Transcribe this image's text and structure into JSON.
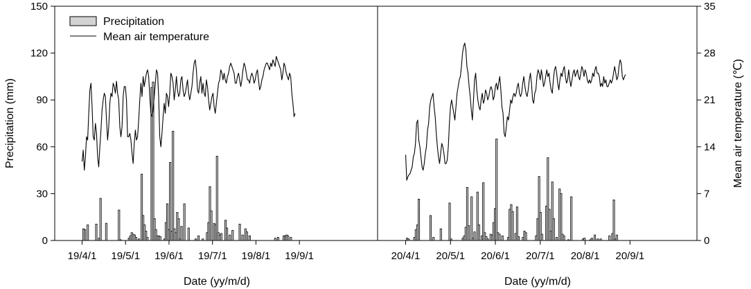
{
  "chart_data": {
    "type": "bar+line",
    "legend": {
      "placement": "top-left",
      "entries": [
        {
          "label": "Precipitation",
          "kind": "bar",
          "fill": "#d3d3d3",
          "stroke": "#000000"
        },
        {
          "label": "Mean air temperature",
          "kind": "line",
          "stroke": "#000000"
        }
      ]
    },
    "y_left": {
      "label": "Precipitation (mm)",
      "range": [
        0,
        150
      ],
      "ticks": [
        0,
        30,
        60,
        90,
        120,
        150
      ],
      "tick_labels": [
        "0",
        "30",
        "60",
        "90",
        "120",
        "150"
      ]
    },
    "y_right": {
      "label": "Mean air temperature (℃)",
      "range": [
        0,
        35
      ],
      "ticks": [
        0,
        7,
        14,
        21,
        28,
        35
      ],
      "tick_labels": [
        "0",
        "7",
        "14",
        "21",
        "28",
        "35"
      ]
    },
    "panels": [
      {
        "xlabel": "Date (yy/m/d)",
        "x_ticks": [
          "19/4/1",
          "19/5/1",
          "19/6/1",
          "19/7/1",
          "19/8/1",
          "19/9/1"
        ],
        "start_date": "2019-04-01",
        "precipitation": [
          [
            "2019-04-02",
            7.5
          ],
          [
            "2019-04-03",
            7.0
          ],
          [
            "2019-04-05",
            10.0
          ],
          [
            "2019-04-11",
            10.5
          ],
          [
            "2019-04-13",
            1.5
          ],
          [
            "2019-04-14",
            27.0
          ],
          [
            "2019-04-18",
            11.0
          ],
          [
            "2019-04-27",
            19.5
          ],
          [
            "2019-04-28",
            0.5
          ],
          [
            "2019-05-04",
            1.5
          ],
          [
            "2019-05-05",
            3.0
          ],
          [
            "2019-05-06",
            5.0
          ],
          [
            "2019-05-07",
            4.0
          ],
          [
            "2019-05-08",
            3.5
          ],
          [
            "2019-05-09",
            2.0
          ],
          [
            "2019-05-11",
            1.0
          ],
          [
            "2019-05-13",
            42.5
          ],
          [
            "2019-05-14",
            16.0
          ],
          [
            "2019-05-15",
            10.0
          ],
          [
            "2019-05-16",
            6.0
          ],
          [
            "2019-05-17",
            2.0
          ],
          [
            "2019-05-20",
            98.0
          ],
          [
            "2019-05-21",
            101.5
          ],
          [
            "2019-05-22",
            14.0
          ],
          [
            "2019-05-23",
            7.0
          ],
          [
            "2019-05-24",
            3.0
          ],
          [
            "2019-05-25",
            3.0
          ],
          [
            "2019-05-26",
            2.5
          ],
          [
            "2019-05-29",
            1.0
          ],
          [
            "2019-05-30",
            11.5
          ],
          [
            "2019-05-31",
            23.5
          ],
          [
            "2019-06-01",
            7.0
          ],
          [
            "2019-06-02",
            50.0
          ],
          [
            "2019-06-03",
            6.0
          ],
          [
            "2019-06-04",
            70.0
          ],
          [
            "2019-06-05",
            7.5
          ],
          [
            "2019-06-06",
            5.0
          ],
          [
            "2019-06-07",
            18.0
          ],
          [
            "2019-06-08",
            14.0
          ],
          [
            "2019-06-09",
            1.0
          ],
          [
            "2019-06-10",
            9.0
          ],
          [
            "2019-06-12",
            23.5
          ],
          [
            "2019-06-15",
            8.0
          ],
          [
            "2019-06-20",
            1.0
          ],
          [
            "2019-06-22",
            3.0
          ],
          [
            "2019-06-25",
            1.0
          ],
          [
            "2019-06-28",
            5.0
          ],
          [
            "2019-06-29",
            11.5
          ],
          [
            "2019-06-30",
            34.5
          ],
          [
            "2019-07-01",
            19.0
          ],
          [
            "2019-07-03",
            11.0
          ],
          [
            "2019-07-04",
            10.0
          ],
          [
            "2019-07-05",
            54.0
          ],
          [
            "2019-07-06",
            5.0
          ],
          [
            "2019-07-07",
            3.5
          ],
          [
            "2019-07-08",
            4.5
          ],
          [
            "2019-07-11",
            13.0
          ],
          [
            "2019-07-12",
            8.0
          ],
          [
            "2019-07-14",
            3.5
          ],
          [
            "2019-07-16",
            6.5
          ],
          [
            "2019-07-21",
            10.5
          ],
          [
            "2019-07-23",
            3.5
          ],
          [
            "2019-07-25",
            7.5
          ],
          [
            "2019-07-26",
            5.5
          ],
          [
            "2019-07-28",
            3.0
          ],
          [
            "2019-08-15",
            1.5
          ],
          [
            "2019-08-17",
            2.0
          ],
          [
            "2019-08-21",
            3.0
          ],
          [
            "2019-08-22",
            3.0
          ],
          [
            "2019-08-23",
            3.5
          ],
          [
            "2019-08-24",
            3.0
          ],
          [
            "2019-08-26",
            2.0
          ]
        ],
        "temperature": [
          11.8,
          13.5,
          10.5,
          12.5,
          15.5,
          15.0,
          19.0,
          22.5,
          23.5,
          20.0,
          15.5,
          15.0,
          17.5,
          16.0,
          12.5,
          11.0,
          14.0,
          16.5,
          19.5,
          21.0,
          22.0,
          21.5,
          18.0,
          15.0,
          17.0,
          20.5,
          22.0,
          21.5,
          23.5,
          23.0,
          22.0,
          23.8,
          22.0,
          21.0,
          17.0,
          15.5,
          17.0,
          21.5,
          23.0,
          23.0,
          21.0,
          15.5,
          15.5,
          16.0,
          15.0,
          13.0,
          11.5,
          14.5,
          16.5,
          15.0,
          15.5,
          18.0,
          21.0,
          23.5,
          21.5,
          24.5,
          23.0,
          24.0,
          25.0,
          25.5,
          24.5,
          21.5,
          19.0,
          18.5,
          19.5,
          21.5,
          23.5,
          25.5,
          25.0,
          21.5,
          15.5,
          14.0,
          16.0,
          18.5,
          20.5,
          19.0,
          22.0,
          21.5,
          20.0,
          22.0,
          25.0,
          24.5,
          23.5,
          21.0,
          22.5,
          24.5,
          22.5,
          21.5,
          22.0,
          24.0,
          24.5,
          22.5,
          21.5,
          22.0,
          23.0,
          24.0,
          22.0,
          21.0,
          22.0,
          23.0,
          25.0,
          26.5,
          27.0,
          25.5,
          22.5,
          22.0,
          23.5,
          24.5,
          22.0,
          23.5,
          22.0,
          21.5,
          24.0,
          23.0,
          21.0,
          19.5,
          20.5,
          21.5,
          22.0,
          20.0,
          19.0,
          20.5,
          22.0,
          23.5,
          24.0,
          25.5,
          25.0,
          24.0,
          25.0,
          24.0,
          23.5,
          24.5,
          25.0,
          26.0,
          26.5,
          26.0,
          25.5,
          25.0,
          23.5,
          23.5,
          24.5,
          25.0,
          24.0,
          23.0,
          24.0,
          25.5,
          26.5,
          26.0,
          25.0,
          24.0,
          24.0,
          23.5,
          24.5,
          25.0,
          24.5,
          23.5,
          24.0,
          25.0,
          25.5,
          24.0,
          22.5,
          23.0,
          24.0,
          24.5,
          25.5,
          26.0,
          26.5,
          26.5,
          26.0,
          25.5,
          26.5,
          26.0,
          27.0,
          26.5,
          26.0,
          27.5,
          27.0,
          26.5,
          26.0,
          25.5,
          24.0,
          25.0,
          26.5,
          26.0,
          25.0,
          24.5,
          24.0,
          25.0,
          24.5,
          22.0,
          20.5,
          18.5,
          19.0
        ]
      },
      {
        "xlabel": "Date (yy/m/d)",
        "x_ticks": [
          "20/4/1",
          "20/5/1",
          "20/6/1",
          "20/7/1",
          "20/8/1",
          "20/9/1"
        ],
        "start_date": "2020-04-01",
        "precipitation": [
          [
            "2020-04-02",
            1.5
          ],
          [
            "2020-04-03",
            1.0
          ],
          [
            "2020-04-07",
            2.0
          ],
          [
            "2020-04-08",
            7.0
          ],
          [
            "2020-04-09",
            10.0
          ],
          [
            "2020-04-10",
            26.5
          ],
          [
            "2020-04-18",
            16.0
          ],
          [
            "2020-04-20",
            2.0
          ],
          [
            "2020-04-25",
            7.5
          ],
          [
            "2020-05-01",
            24.0
          ],
          [
            "2020-05-02",
            1.0
          ],
          [
            "2020-05-10",
            1.5
          ],
          [
            "2020-05-11",
            3.0
          ],
          [
            "2020-05-12",
            8.5
          ],
          [
            "2020-05-13",
            34.0
          ],
          [
            "2020-05-14",
            9.5
          ],
          [
            "2020-05-16",
            28.0
          ],
          [
            "2020-05-17",
            1.5
          ],
          [
            "2020-05-18",
            5.5
          ],
          [
            "2020-05-20",
            31.0
          ],
          [
            "2020-05-21",
            10.0
          ],
          [
            "2020-05-23",
            3.0
          ],
          [
            "2020-05-24",
            37.0
          ],
          [
            "2020-05-25",
            5.0
          ],
          [
            "2020-05-26",
            2.5
          ],
          [
            "2020-05-27",
            1.0
          ],
          [
            "2020-05-29",
            4.0
          ],
          [
            "2020-05-30",
            3.5
          ],
          [
            "2020-05-31",
            11.5
          ],
          [
            "2020-06-01",
            20.5
          ],
          [
            "2020-06-02",
            65.0
          ],
          [
            "2020-06-03",
            5.0
          ],
          [
            "2020-06-04",
            4.0
          ],
          [
            "2020-06-06",
            3.0
          ],
          [
            "2020-06-10",
            2.0
          ],
          [
            "2020-06-11",
            20.0
          ],
          [
            "2020-06-12",
            23.0
          ],
          [
            "2020-06-13",
            18.5
          ],
          [
            "2020-06-15",
            4.5
          ],
          [
            "2020-06-16",
            21.5
          ],
          [
            "2020-06-17",
            2.5
          ],
          [
            "2020-06-20",
            2.0
          ],
          [
            "2020-06-21",
            6.0
          ],
          [
            "2020-06-22",
            5.0
          ],
          [
            "2020-06-29",
            3.0
          ],
          [
            "2020-06-30",
            14.0
          ],
          [
            "2020-07-01",
            41.0
          ],
          [
            "2020-07-02",
            18.0
          ],
          [
            "2020-07-03",
            4.0
          ],
          [
            "2020-07-06",
            22.0
          ],
          [
            "2020-07-07",
            53.0
          ],
          [
            "2020-07-08",
            20.0
          ],
          [
            "2020-07-09",
            6.0
          ],
          [
            "2020-07-10",
            37.5
          ],
          [
            "2020-07-11",
            14.0
          ],
          [
            "2020-07-13",
            2.0
          ],
          [
            "2020-07-15",
            33.0
          ],
          [
            "2020-07-16",
            30.0
          ],
          [
            "2020-07-17",
            4.0
          ],
          [
            "2020-07-18",
            3.0
          ],
          [
            "2020-07-21",
            0.5
          ],
          [
            "2020-07-23",
            28.0
          ],
          [
            "2020-07-31",
            1.0
          ],
          [
            "2020-08-01",
            1.5
          ],
          [
            "2020-08-05",
            0.5
          ],
          [
            "2020-08-06",
            1.5
          ],
          [
            "2020-08-08",
            3.5
          ],
          [
            "2020-08-10",
            1.0
          ],
          [
            "2020-08-12",
            1.0
          ],
          [
            "2020-08-18",
            3.0
          ],
          [
            "2020-08-20",
            4.5
          ],
          [
            "2020-08-21",
            26.0
          ],
          [
            "2020-08-22",
            1.0
          ],
          [
            "2020-08-23",
            3.5
          ]
        ],
        "temperature": [
          12.8,
          9.0,
          9.5,
          9.8,
          10.0,
          10.5,
          11.0,
          12.5,
          13.0,
          14.5,
          17.5,
          18.0,
          15.0,
          14.0,
          12.5,
          11.0,
          10.5,
          11.5,
          13.0,
          14.0,
          16.5,
          17.5,
          20.0,
          21.0,
          21.5,
          22.0,
          20.0,
          18.5,
          16.0,
          14.0,
          12.5,
          11.5,
          13.0,
          14.5,
          14.0,
          13.0,
          11.5,
          11.5,
          12.0,
          14.0,
          17.5,
          20.0,
          21.0,
          20.0,
          19.0,
          18.0,
          20.0,
          22.0,
          23.0,
          24.0,
          24.5,
          26.0,
          28.0,
          29.0,
          29.5,
          28.5,
          26.0,
          25.0,
          23.0,
          21.5,
          19.5,
          18.0,
          21.0,
          24.0,
          25.0,
          22.5,
          21.0,
          20.0,
          19.5,
          21.0,
          22.0,
          20.5,
          21.0,
          22.5,
          22.0,
          21.0,
          21.5,
          22.5,
          23.0,
          22.5,
          21.0,
          21.5,
          23.0,
          23.5,
          22.5,
          23.5,
          24.5,
          22.5,
          20.0,
          19.0,
          16.0,
          15.5,
          17.0,
          18.5,
          18.0,
          19.5,
          21.0,
          20.5,
          21.5,
          22.0,
          21.5,
          22.0,
          23.0,
          23.5,
          22.0,
          21.5,
          22.0,
          23.5,
          24.5,
          23.0,
          22.0,
          21.5,
          22.5,
          24.0,
          25.0,
          23.5,
          21.0,
          20.5,
          22.0,
          22.5,
          24.5,
          25.5,
          25.0,
          24.0,
          25.5,
          24.5,
          23.0,
          23.5,
          24.5,
          25.5,
          24.5,
          25.0,
          23.5,
          22.5,
          22.0,
          24.0,
          25.5,
          26.0,
          25.0,
          23.5,
          22.5,
          24.0,
          25.0,
          24.5,
          25.5,
          26.0,
          24.5,
          23.5,
          24.0,
          25.5,
          24.0,
          23.0,
          24.0,
          25.0,
          25.5,
          24.5,
          25.0,
          25.5,
          24.5,
          24.0,
          25.0,
          26.0,
          25.5,
          24.5,
          25.5,
          25.0,
          24.0,
          23.5,
          24.0,
          23.5,
          24.0,
          25.0,
          24.5,
          25.5,
          26.0,
          25.0,
          25.0,
          24.5,
          23.0,
          23.5,
          23.0,
          24.5,
          23.5,
          24.0,
          23.0,
          23.0,
          23.5,
          24.0,
          23.5,
          24.0,
          25.0,
          26.0,
          25.0,
          24.0,
          24.5,
          26.0,
          27.0,
          26.5,
          24.5,
          24.0,
          24.5,
          24.8
        ]
      }
    ]
  }
}
